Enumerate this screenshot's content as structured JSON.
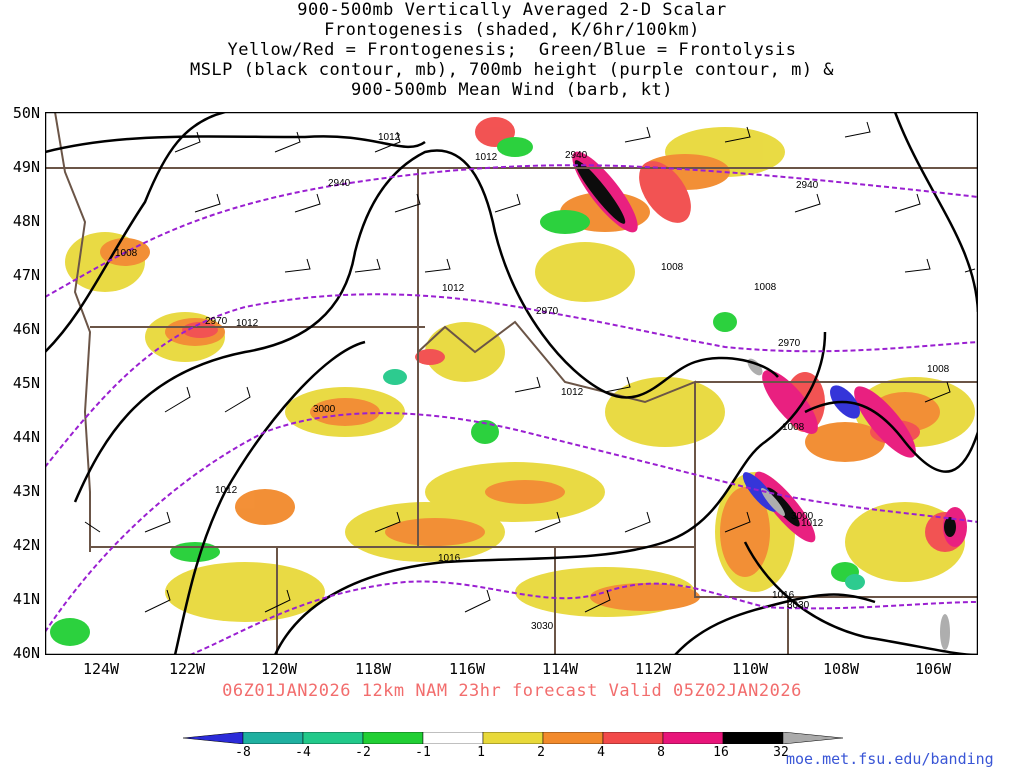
{
  "title_lines": [
    "900-500mb Vertically Averaged 2-D Scalar",
    "Frontogenesis (shaded, K/6hr/100km)",
    "Yellow/Red = Frontogenesis;  Green/Blue = Frontolysis",
    "MSLP (black contour, mb), 700mb height (purple contour, m) &",
    "900-500mb Mean Wind (barb, kt)"
  ],
  "lat_labels": [
    "50N",
    "49N",
    "48N",
    "47N",
    "46N",
    "45N",
    "44N",
    "43N",
    "42N",
    "41N",
    "40N"
  ],
  "lon_labels": [
    "124W",
    "122W",
    "120W",
    "118W",
    "116W",
    "114W",
    "112W",
    "110W",
    "108W",
    "106W"
  ],
  "valid_line": "06Z01JAN2026 12km NAM 23hr forecast Valid 05Z02JAN2026",
  "credit": "moe.met.fsu.edu/banding",
  "colorbar": {
    "ticks": [
      "-8",
      "-4",
      "-2",
      "-1",
      "1",
      "2",
      "4",
      "8",
      "16",
      "32"
    ],
    "colors": [
      "#2b2bd8",
      "#1fb0a0",
      "#22c98a",
      "#21cf34",
      "#ffffff",
      "#e8d93a",
      "#f28a2c",
      "#f24a4a",
      "#e8157a",
      "#000000",
      "#aaaaaa"
    ]
  },
  "mslp_labels": [
    {
      "text": "1012"
    },
    {
      "text": "1012"
    },
    {
      "text": "1008"
    },
    {
      "text": "1012"
    },
    {
      "text": "1012"
    },
    {
      "text": "1008"
    },
    {
      "text": "1008"
    },
    {
      "text": "1012"
    },
    {
      "text": "1008"
    },
    {
      "text": "1008"
    },
    {
      "text": "1012"
    },
    {
      "text": "1012"
    },
    {
      "text": "1016"
    },
    {
      "text": "1016"
    }
  ],
  "height_labels": [
    {
      "text": "2940"
    },
    {
      "text": "2940"
    },
    {
      "text": "2940"
    },
    {
      "text": "2970"
    },
    {
      "text": "2970"
    },
    {
      "text": "2970"
    },
    {
      "text": "3000"
    },
    {
      "text": "3000"
    },
    {
      "text": "3030"
    },
    {
      "text": "3030"
    }
  ],
  "colors": {
    "mslp": "#000000",
    "height": "#9a1fd1",
    "border": "#6b5547",
    "frame": "#000000",
    "valid_text": "#f26d6d",
    "credit": "#3a56d6"
  }
}
